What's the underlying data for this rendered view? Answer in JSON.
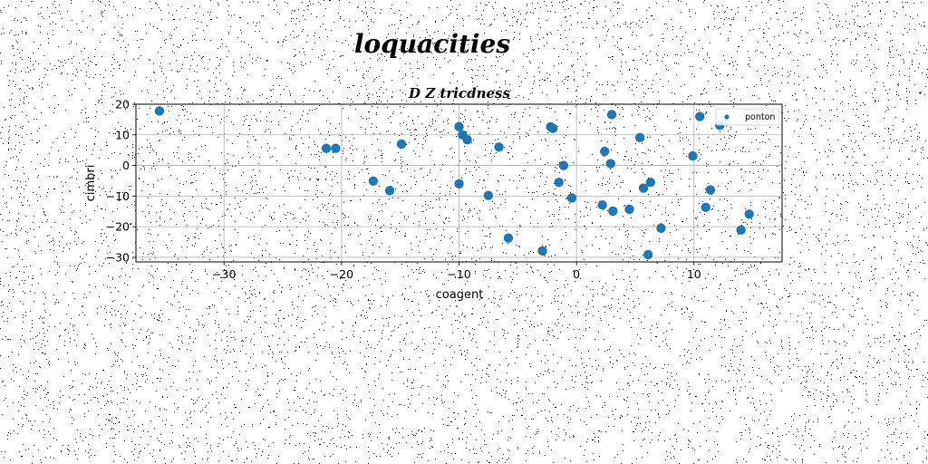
{
  "chart_data": {
    "type": "scatter",
    "suptitle": "loquacities",
    "title": "D Z tricdness",
    "xlabel": "coagent",
    "ylabel": "cimbri",
    "xlim": [
      -37.5,
      17.5
    ],
    "ylim": [
      -31.5,
      20.0
    ],
    "xticks": [
      -30,
      -20,
      -10,
      0,
      10
    ],
    "xtick_labels": [
      "−30",
      "−20",
      "−10",
      "0",
      "10"
    ],
    "yticks": [
      -30,
      -20,
      -10,
      0,
      10,
      20
    ],
    "ytick_labels": [
      "−30",
      "−20",
      "−10",
      "0",
      "10",
      "20"
    ],
    "grid": true,
    "legend_position": "top-right",
    "series_color": "#1f77b4",
    "series": [
      {
        "name": "ponton",
        "points": [
          [
            -35.5,
            17.8
          ],
          [
            -21.3,
            5.6
          ],
          [
            -20.5,
            5.6
          ],
          [
            -17.3,
            -5.1
          ],
          [
            -15.9,
            -8.2
          ],
          [
            -14.9,
            7.0
          ],
          [
            -10.0,
            12.7
          ],
          [
            -9.7,
            10.0
          ],
          [
            -9.3,
            8.4
          ],
          [
            -10.0,
            -6.0
          ],
          [
            -7.5,
            -9.8
          ],
          [
            -6.6,
            6.0
          ],
          [
            -5.8,
            -23.7
          ],
          [
            -2.9,
            -27.9
          ],
          [
            -2.2,
            12.6
          ],
          [
            -2.0,
            12.1
          ],
          [
            -1.5,
            -5.5
          ],
          [
            -1.1,
            0.0
          ],
          [
            -0.4,
            -10.6
          ],
          [
            2.2,
            -12.9
          ],
          [
            2.4,
            4.6
          ],
          [
            3.0,
            16.6
          ],
          [
            2.9,
            0.6
          ],
          [
            3.1,
            -14.9
          ],
          [
            4.5,
            -14.3
          ],
          [
            5.4,
            9.1
          ],
          [
            5.7,
            -7.4
          ],
          [
            6.3,
            -5.5
          ],
          [
            6.1,
            -29.1
          ],
          [
            7.2,
            -20.5
          ],
          [
            9.9,
            3.1
          ],
          [
            10.5,
            16.0
          ],
          [
            11.0,
            -13.7
          ],
          [
            11.4,
            -8.0
          ],
          [
            12.2,
            13.1
          ],
          [
            14.0,
            -21.1
          ],
          [
            14.7,
            -15.9
          ]
        ]
      }
    ]
  }
}
